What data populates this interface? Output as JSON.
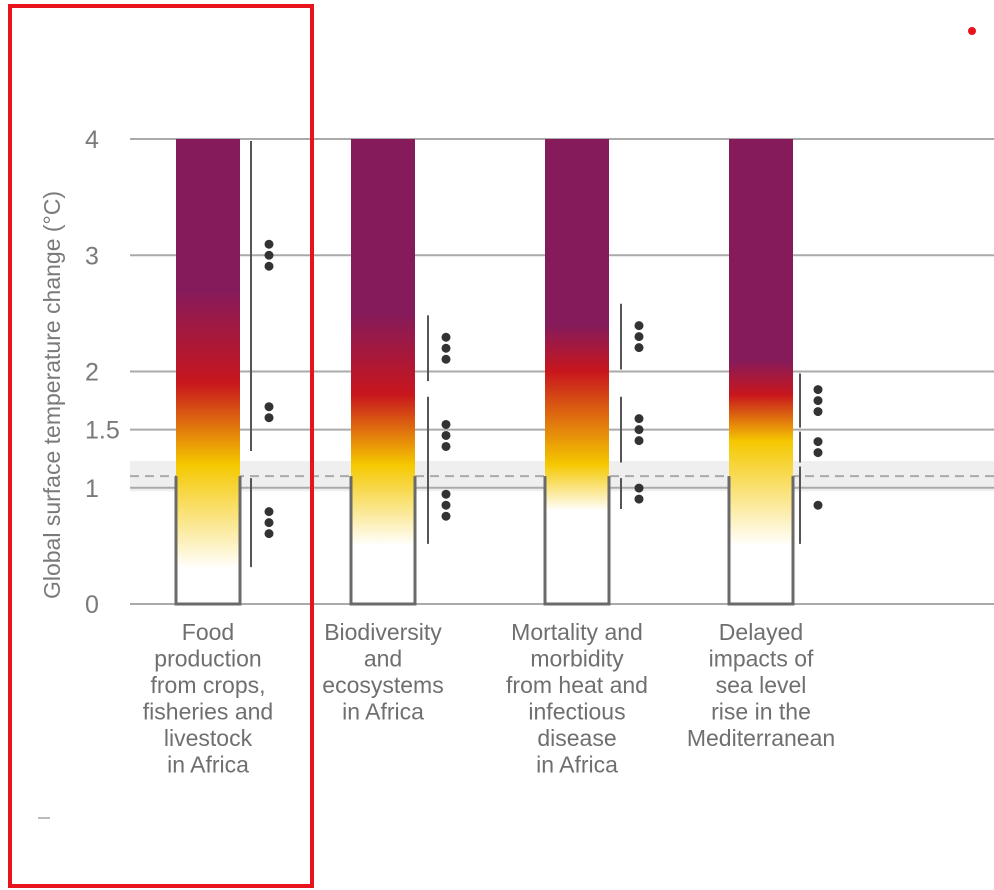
{
  "chart_data": {
    "type": "bar",
    "ylabel": "Global surface temperature change (°C)",
    "yticks": [
      {
        "value": 0,
        "label": "0"
      },
      {
        "value": 1,
        "label": "1"
      },
      {
        "value": 1.5,
        "label": "1.5"
      },
      {
        "value": 2,
        "label": "2"
      },
      {
        "value": 3,
        "label": "3"
      },
      {
        "value": 4,
        "label": "4"
      }
    ],
    "ylim": [
      0,
      4
    ],
    "recent_warming_band": [
      0.97,
      1.23
    ],
    "recent_warming_line": 1.1,
    "risk_level_colors": {
      "undetectable": "#ffffff",
      "moderate": "#f5c800",
      "high": "#c8161d",
      "very_high": "#851b5b"
    },
    "categories": [
      {
        "label_lines": [
          "Food",
          "production",
          "from crops,",
          "fisheries and",
          "livestock",
          "in Africa"
        ],
        "transitions": [
          {
            "from": "undetectable",
            "to": "moderate",
            "start": 0.3,
            "end": 1.2
          },
          {
            "from": "moderate",
            "to": "high",
            "start": 1.2,
            "end": 1.9
          },
          {
            "from": "high",
            "to": "very_high",
            "start": 1.9,
            "end": 2.7
          }
        ],
        "confidence": [
          {
            "start": 0.3,
            "end": 1.1,
            "dots": 3
          },
          {
            "start": 1.3,
            "end": 4.0,
            "dots": 3
          },
          {
            "start": 1.3,
            "end": 4.0,
            "dots": 2
          }
        ],
        "highlighted": true
      },
      {
        "label_lines": [
          "Biodiversity",
          "and",
          "ecosystems",
          "in Africa"
        ],
        "transitions": [
          {
            "from": "undetectable",
            "to": "moderate",
            "start": 0.5,
            "end": 1.2
          },
          {
            "from": "moderate",
            "to": "high",
            "start": 1.2,
            "end": 1.8
          },
          {
            "from": "high",
            "to": "very_high",
            "start": 1.8,
            "end": 2.5
          }
        ],
        "confidence": [
          {
            "start": 0.5,
            "end": 1.2,
            "dots": 3
          },
          {
            "start": 1.1,
            "end": 1.8,
            "dots": 3
          },
          {
            "start": 1.9,
            "end": 2.5,
            "dots": 3
          }
        ],
        "highlighted": false
      },
      {
        "label_lines": [
          "Mortality and",
          "morbidity",
          "from heat and",
          "infectious",
          "disease",
          "in Africa"
        ],
        "transitions": [
          {
            "from": "undetectable",
            "to": "moderate",
            "start": 0.8,
            "end": 1.2
          },
          {
            "from": "moderate",
            "to": "high",
            "start": 1.2,
            "end": 2.0
          },
          {
            "from": "high",
            "to": "very_high",
            "start": 2.0,
            "end": 2.4
          }
        ],
        "confidence": [
          {
            "start": 0.8,
            "end": 1.1,
            "dots": 2
          },
          {
            "start": 1.2,
            "end": 1.8,
            "dots": 3
          },
          {
            "start": 2.0,
            "end": 2.6,
            "dots": 3
          }
        ],
        "highlighted": false
      },
      {
        "label_lines": [
          "Delayed",
          "impacts of",
          "sea level",
          "rise in the",
          "Mediterranean"
        ],
        "transitions": [
          {
            "from": "undetectable",
            "to": "moderate",
            "start": 0.5,
            "end": 1.4
          },
          {
            "from": "moderate",
            "to": "high",
            "start": 1.4,
            "end": 1.8
          },
          {
            "from": "high",
            "to": "very_high",
            "start": 1.8,
            "end": 2.1
          }
        ],
        "confidence": [
          {
            "start": 0.5,
            "end": 1.2,
            "dots": 1
          },
          {
            "start": 1.2,
            "end": 1.5,
            "dots": 2
          },
          {
            "start": 1.5,
            "end": 2.0,
            "dots": 3
          }
        ],
        "highlighted": false
      }
    ]
  },
  "annotations": {
    "highlight_color": "#e8141c"
  }
}
